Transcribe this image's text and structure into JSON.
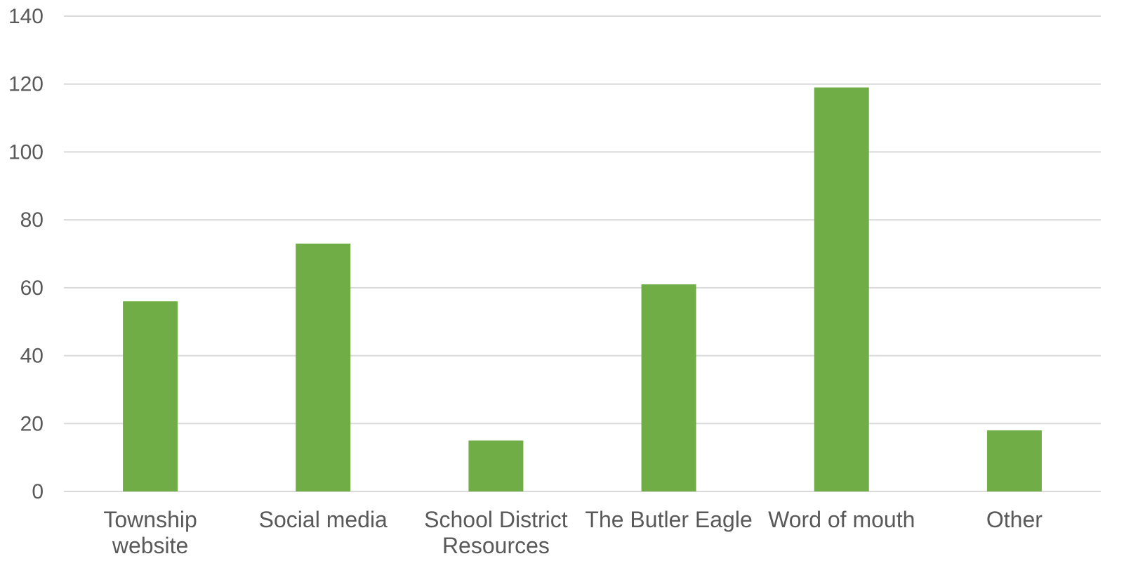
{
  "chart_data": {
    "type": "bar",
    "title": "",
    "xlabel": "",
    "ylabel": "",
    "categories": [
      [
        "Township",
        "website"
      ],
      [
        "Social media"
      ],
      [
        "School District",
        "Resources"
      ],
      [
        "The Butler Eagle"
      ],
      [
        "Word of mouth"
      ],
      [
        "Other"
      ]
    ],
    "values": [
      56,
      73,
      15,
      61,
      119,
      18
    ],
    "ylim": [
      0,
      140
    ],
    "yticks": [
      0,
      20,
      40,
      60,
      80,
      100,
      120,
      140
    ],
    "grid": true,
    "legend": "none",
    "bar_color": "#70ad47",
    "grid_color": "#d9d9d9",
    "text_color": "#595959"
  }
}
